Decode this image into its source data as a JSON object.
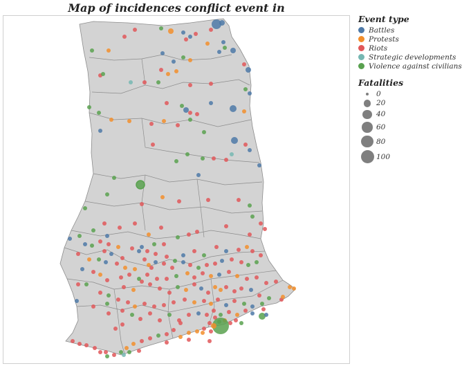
{
  "title": "Map of incidences conflict event in Ghana",
  "legend": {
    "event_type": {
      "title": "Event type",
      "items": [
        {
          "label": "Battles",
          "color": "#4e79a7"
        },
        {
          "label": "Protests",
          "color": "#f28e2b"
        },
        {
          "label": "Riots",
          "color": "#e15759"
        },
        {
          "label": "Strategic developments",
          "color": "#76b7b2"
        },
        {
          "label": "Violence against civilians",
          "color": "#59a14f"
        }
      ]
    },
    "fatalities": {
      "title": "Fatalities",
      "items": [
        {
          "label": "0",
          "value": 0
        },
        {
          "label": "20",
          "value": 20
        },
        {
          "label": "40",
          "value": 40
        },
        {
          "label": "60",
          "value": 60
        },
        {
          "label": "80",
          "value": 80
        },
        {
          "label": "100",
          "value": 100
        }
      ]
    }
  },
  "map": {
    "country": "Ghana",
    "land_color": "#d3d3d3",
    "border_color": "#8c8c8c"
  }
}
